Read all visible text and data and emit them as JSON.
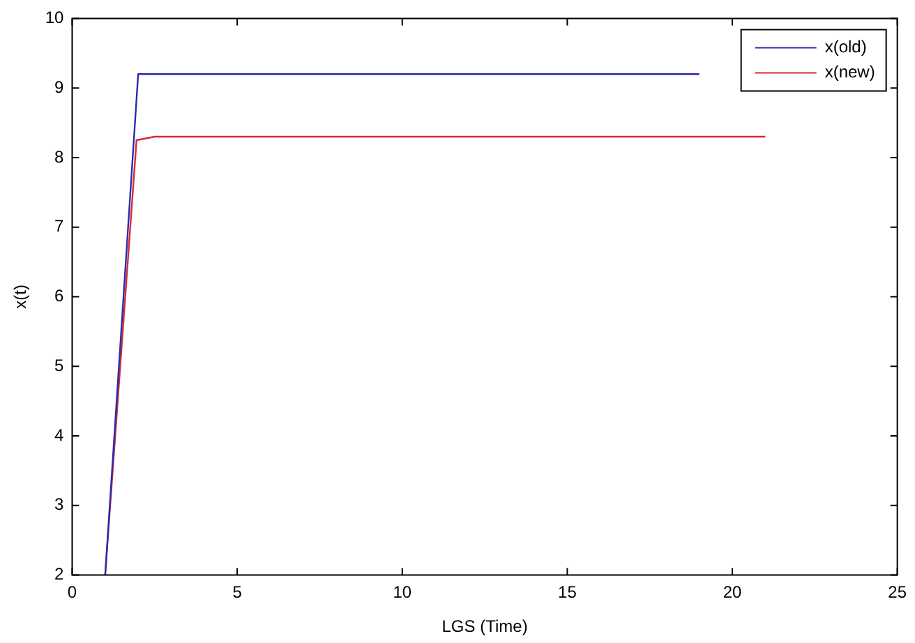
{
  "chart_data": {
    "type": "line",
    "xlabel": "LGS (Time)",
    "ylabel": "x(t)",
    "xlim": [
      0,
      25
    ],
    "ylim": [
      2,
      10
    ],
    "xticks": [
      0,
      5,
      10,
      15,
      20,
      25
    ],
    "yticks": [
      2,
      3,
      4,
      5,
      6,
      7,
      8,
      9,
      10
    ],
    "grid": false,
    "legend": "top right",
    "marker": "none",
    "line_style": "solid",
    "series": [
      {
        "name": "x(old)",
        "color": "#2b2bb0",
        "x": [
          1,
          2,
          19
        ],
        "values": [
          2,
          9.2,
          9.2
        ]
      },
      {
        "name": "x(new)",
        "color": "#d42a3a",
        "x": [
          1,
          1.95,
          2.5,
          21
        ],
        "values": [
          2,
          8.25,
          8.3,
          8.3
        ]
      }
    ]
  }
}
